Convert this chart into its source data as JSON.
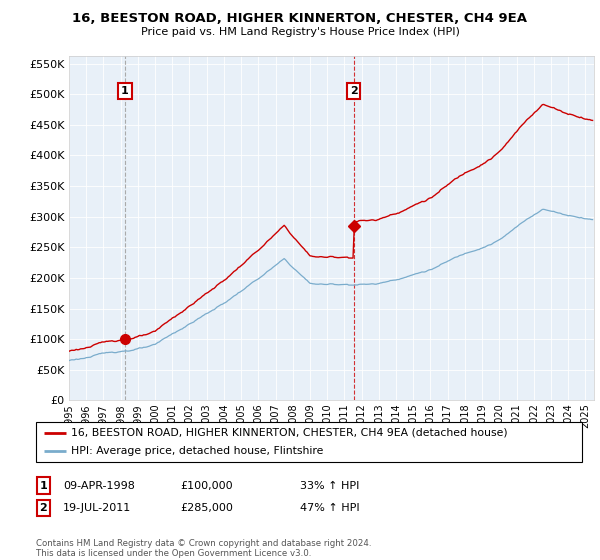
{
  "title1": "16, BEESTON ROAD, HIGHER KINNERTON, CHESTER, CH4 9EA",
  "title2": "Price paid vs. HM Land Registry's House Price Index (HPI)",
  "legend_line1": "16, BEESTON ROAD, HIGHER KINNERTON, CHESTER, CH4 9EA (detached house)",
  "legend_line2": "HPI: Average price, detached house, Flintshire",
  "annotation1_date": "09-APR-1998",
  "annotation1_price": 100000,
  "annotation1_price_str": "£100,000",
  "annotation1_hpi": "33% ↑ HPI",
  "annotation2_date": "19-JUL-2011",
  "annotation2_price": 285000,
  "annotation2_price_str": "£285,000",
  "annotation2_hpi": "47% ↑ HPI",
  "footer": "Contains HM Land Registry data © Crown copyright and database right 2024.\nThis data is licensed under the Open Government Licence v3.0.",
  "red_color": "#cc0000",
  "blue_color": "#7aaccc",
  "chart_bg": "#e8f0f8",
  "grid_color": "#ffffff",
  "background_color": "#ffffff",
  "sale1_year": 1998.25,
  "sale2_year": 2011.54,
  "ylim": [
    0,
    562500
  ],
  "yticks": [
    0,
    50000,
    100000,
    150000,
    200000,
    250000,
    300000,
    350000,
    400000,
    450000,
    500000,
    550000
  ],
  "xlim_left": 1995.0,
  "xlim_right": 2025.5
}
